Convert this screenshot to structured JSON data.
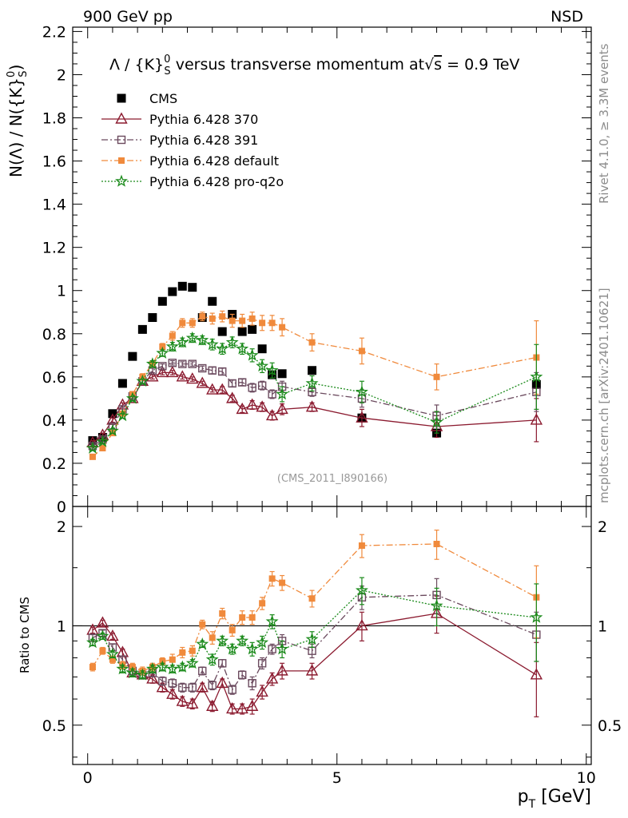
{
  "header": {
    "left": "900 GeV pp",
    "right": "NSD",
    "rivet": "Rivet 4.1.0, ≥ 3.3M events",
    "mcplots": "mcplots.cern.ch [arXiv:2401.10621]",
    "analysis": "(CMS_2011_I890166)"
  },
  "colors": {
    "cms": "#000000",
    "p370": "#8b1a2f",
    "p391": "#6b4a5e",
    "pdefault": "#f08a3c",
    "pq2o": "#1a8a1a"
  },
  "chart_data": [
    {
      "type": "scatter",
      "title": "Λ / {K}⁰S versus transverse momentum at √s = 0.9 TeV",
      "title_parts": {
        "lambda": "Λ",
        "rest": " / {K}",
        "sup": "0",
        "sub": "S",
        "mid": " versus transverse momentum at",
        "sqrt": "√",
        "s": "s",
        "end": " = 0.9 TeV"
      },
      "ylabel": "N(Λ)  /  N({K}⁰S)",
      "ylabel_parts": {
        "main": "N(Λ)  /  N({K}",
        "sup": "0",
        "sub": "S",
        "end": ")"
      },
      "xlim": [
        -0.3,
        10.1
      ],
      "ylim": [
        0,
        2.22
      ],
      "yticks": [
        "0",
        "0.2",
        "0.4",
        "0.6",
        "0.8",
        "1",
        "1.2",
        "1.4",
        "1.6",
        "1.8",
        "2",
        "2.2"
      ],
      "yticks_values": [
        0,
        0.2,
        0.4,
        0.6,
        0.8,
        1,
        1.2,
        1.4,
        1.6,
        1.8,
        2,
        2.2
      ],
      "legend_position": "top-left",
      "series": [
        {
          "name": "CMS",
          "key": "cms",
          "marker": "filled-square",
          "x": [
            0.1,
            0.3,
            0.5,
            0.7,
            0.9,
            1.1,
            1.3,
            1.5,
            1.7,
            1.9,
            2.1,
            2.3,
            2.5,
            2.7,
            2.9,
            3.1,
            3.3,
            3.5,
            3.7,
            3.9,
            4.5,
            5.5,
            7.0,
            9.0
          ],
          "y": [
            0.305,
            0.32,
            0.43,
            0.57,
            0.695,
            0.82,
            0.875,
            0.95,
            0.995,
            1.02,
            1.015,
            0.875,
            0.95,
            0.81,
            0.89,
            0.81,
            0.82,
            0.73,
            0.61,
            0.615,
            0.63,
            0.41,
            0.34,
            0.565
          ]
        },
        {
          "name": "Pythia 6.428 370",
          "key": "p370",
          "marker": "open-triangle",
          "line": "solid",
          "x": [
            0.1,
            0.3,
            0.5,
            0.7,
            0.9,
            1.1,
            1.3,
            1.5,
            1.7,
            1.9,
            2.1,
            2.3,
            2.5,
            2.7,
            2.9,
            3.1,
            3.3,
            3.5,
            3.7,
            3.9,
            4.5,
            5.5,
            7.0,
            9.0
          ],
          "y": [
            0.295,
            0.33,
            0.4,
            0.47,
            0.5,
            0.58,
            0.6,
            0.62,
            0.62,
            0.6,
            0.59,
            0.57,
            0.54,
            0.54,
            0.5,
            0.45,
            0.47,
            0.46,
            0.42,
            0.45,
            0.46,
            0.41,
            0.37,
            0.4
          ],
          "err": [
            0.01,
            0.01,
            0.01,
            0.01,
            0.01,
            0.01,
            0.01,
            0.01,
            0.01,
            0.01,
            0.01,
            0.01,
            0.01,
            0.015,
            0.015,
            0.015,
            0.02,
            0.02,
            0.02,
            0.025,
            0.02,
            0.04,
            0.05,
            0.1
          ]
        },
        {
          "name": "Pythia 6.428 391",
          "key": "p391",
          "marker": "open-square",
          "line": "dash-dot",
          "x": [
            0.1,
            0.3,
            0.5,
            0.7,
            0.9,
            1.1,
            1.3,
            1.5,
            1.7,
            1.9,
            2.1,
            2.3,
            2.5,
            2.7,
            2.9,
            3.1,
            3.3,
            3.5,
            3.7,
            3.9,
            4.5,
            5.5,
            7.0,
            9.0
          ],
          "y": [
            0.28,
            0.31,
            0.37,
            0.45,
            0.51,
            0.58,
            0.63,
            0.65,
            0.665,
            0.66,
            0.66,
            0.64,
            0.63,
            0.625,
            0.57,
            0.575,
            0.55,
            0.56,
            0.52,
            0.555,
            0.53,
            0.5,
            0.42,
            0.53
          ],
          "err": [
            0.01,
            0.01,
            0.01,
            0.01,
            0.01,
            0.01,
            0.01,
            0.01,
            0.01,
            0.01,
            0.01,
            0.01,
            0.015,
            0.015,
            0.015,
            0.015,
            0.02,
            0.02,
            0.02,
            0.025,
            0.02,
            0.04,
            0.05,
            0.09
          ]
        },
        {
          "name": "Pythia 6.428 default",
          "key": "pdefault",
          "marker": "filled-square-small",
          "line": "dash-dot",
          "x": [
            0.1,
            0.3,
            0.5,
            0.7,
            0.9,
            1.1,
            1.3,
            1.5,
            1.7,
            1.9,
            2.1,
            2.3,
            2.5,
            2.7,
            2.9,
            3.1,
            3.3,
            3.5,
            3.7,
            3.9,
            4.5,
            5.5,
            7.0,
            9.0
          ],
          "y": [
            0.23,
            0.27,
            0.34,
            0.43,
            0.52,
            0.6,
            0.66,
            0.74,
            0.79,
            0.85,
            0.85,
            0.88,
            0.87,
            0.88,
            0.86,
            0.86,
            0.87,
            0.85,
            0.85,
            0.83,
            0.76,
            0.72,
            0.6,
            0.69
          ],
          "err": [
            0.01,
            0.01,
            0.01,
            0.01,
            0.01,
            0.015,
            0.015,
            0.015,
            0.02,
            0.02,
            0.02,
            0.02,
            0.025,
            0.025,
            0.03,
            0.03,
            0.03,
            0.035,
            0.035,
            0.04,
            0.04,
            0.06,
            0.06,
            0.17
          ]
        },
        {
          "name": "Pythia 6.428 pro-q2o",
          "key": "pq2o",
          "marker": "open-star",
          "line": "dotted",
          "x": [
            0.1,
            0.3,
            0.5,
            0.7,
            0.9,
            1.1,
            1.3,
            1.5,
            1.7,
            1.9,
            2.1,
            2.3,
            2.5,
            2.7,
            2.9,
            3.1,
            3.3,
            3.5,
            3.7,
            3.9,
            4.5,
            5.5,
            7.0,
            9.0
          ],
          "y": [
            0.27,
            0.3,
            0.35,
            0.42,
            0.5,
            0.58,
            0.66,
            0.71,
            0.74,
            0.76,
            0.78,
            0.77,
            0.75,
            0.73,
            0.76,
            0.73,
            0.7,
            0.65,
            0.63,
            0.52,
            0.57,
            0.53,
            0.39,
            0.6
          ],
          "err": [
            0.01,
            0.01,
            0.01,
            0.01,
            0.01,
            0.01,
            0.015,
            0.015,
            0.02,
            0.02,
            0.02,
            0.02,
            0.025,
            0.025,
            0.025,
            0.025,
            0.03,
            0.03,
            0.035,
            0.035,
            0.035,
            0.05,
            0.05,
            0.15
          ]
        }
      ]
    },
    {
      "type": "scatter",
      "ylabel": "Ratio to CMS",
      "xlabel": "p_T [GeV]",
      "xlabel_parts": {
        "p": "p",
        "sub": "T",
        "unit": " [GeV]"
      },
      "xlim": [
        -0.3,
        10.1
      ],
      "ylim": [
        0.38,
        2.3
      ],
      "yscale": "log",
      "reference_line": 1,
      "xticks": [
        "0",
        "5",
        "10"
      ],
      "xticks_values": [
        0,
        5,
        10
      ],
      "yticks": [
        "0.5",
        "1",
        "2"
      ],
      "yticks_values": [
        0.5,
        1,
        2
      ],
      "series": [
        {
          "name": "Pythia 6.428 370",
          "key": "p370",
          "x": [
            0.1,
            0.3,
            0.5,
            0.7,
            0.9,
            1.1,
            1.3,
            1.5,
            1.7,
            1.9,
            2.1,
            2.3,
            2.5,
            2.7,
            2.9,
            3.1,
            3.3,
            3.5,
            3.7,
            3.9,
            4.5,
            5.5,
            7.0,
            9.0
          ],
          "y": [
            0.97,
            1.02,
            0.93,
            0.83,
            0.72,
            0.71,
            0.69,
            0.65,
            0.62,
            0.59,
            0.58,
            0.65,
            0.57,
            0.67,
            0.56,
            0.56,
            0.57,
            0.63,
            0.69,
            0.73,
            0.73,
            1.0,
            1.09,
            0.71
          ],
          "err": [
            0.02,
            0.02,
            0.02,
            0.02,
            0.02,
            0.02,
            0.02,
            0.02,
            0.02,
            0.02,
            0.02,
            0.02,
            0.02,
            0.02,
            0.02,
            0.02,
            0.03,
            0.03,
            0.03,
            0.04,
            0.04,
            0.1,
            0.14,
            0.18
          ]
        },
        {
          "name": "Pythia 6.428 391",
          "key": "p391",
          "x": [
            0.1,
            0.3,
            0.5,
            0.7,
            0.9,
            1.1,
            1.3,
            1.5,
            1.7,
            1.9,
            2.1,
            2.3,
            2.5,
            2.7,
            2.9,
            3.1,
            3.3,
            3.5,
            3.7,
            3.9,
            4.5,
            5.5,
            7.0,
            9.0
          ],
          "y": [
            0.92,
            0.95,
            0.86,
            0.79,
            0.73,
            0.71,
            0.72,
            0.68,
            0.67,
            0.65,
            0.65,
            0.73,
            0.66,
            0.77,
            0.64,
            0.71,
            0.67,
            0.77,
            0.85,
            0.9,
            0.84,
            1.22,
            1.24,
            0.94
          ],
          "err": [
            0.02,
            0.02,
            0.02,
            0.02,
            0.02,
            0.02,
            0.02,
            0.02,
            0.02,
            0.02,
            0.02,
            0.02,
            0.02,
            0.02,
            0.02,
            0.02,
            0.03,
            0.03,
            0.03,
            0.04,
            0.04,
            0.1,
            0.15,
            0.16
          ]
        },
        {
          "name": "Pythia 6.428 default",
          "key": "pdefault",
          "x": [
            0.1,
            0.3,
            0.5,
            0.7,
            0.9,
            1.1,
            1.3,
            1.5,
            1.7,
            1.9,
            2.1,
            2.3,
            2.5,
            2.7,
            2.9,
            3.1,
            3.3,
            3.5,
            3.7,
            3.9,
            4.5,
            5.5,
            7.0,
            9.0
          ],
          "y": [
            0.75,
            0.84,
            0.79,
            0.76,
            0.75,
            0.73,
            0.75,
            0.78,
            0.79,
            0.83,
            0.84,
            1.01,
            0.92,
            1.09,
            0.97,
            1.06,
            1.06,
            1.17,
            1.39,
            1.35,
            1.21,
            1.75,
            1.77,
            1.22
          ],
          "err": [
            0.02,
            0.02,
            0.02,
            0.02,
            0.02,
            0.02,
            0.02,
            0.02,
            0.03,
            0.03,
            0.03,
            0.03,
            0.04,
            0.04,
            0.04,
            0.05,
            0.05,
            0.05,
            0.07,
            0.07,
            0.07,
            0.14,
            0.18,
            0.3
          ]
        },
        {
          "name": "Pythia 6.428 pro-q2o",
          "key": "pq2o",
          "x": [
            0.1,
            0.3,
            0.5,
            0.7,
            0.9,
            1.1,
            1.3,
            1.5,
            1.7,
            1.9,
            2.1,
            2.3,
            2.5,
            2.7,
            2.9,
            3.1,
            3.3,
            3.5,
            3.7,
            3.9,
            4.5,
            5.5,
            7.0,
            9.0
          ],
          "y": [
            0.89,
            0.93,
            0.82,
            0.74,
            0.72,
            0.71,
            0.74,
            0.75,
            0.74,
            0.75,
            0.77,
            0.88,
            0.79,
            0.9,
            0.85,
            0.9,
            0.85,
            0.89,
            1.03,
            0.85,
            0.91,
            1.28,
            1.15,
            1.06
          ],
          "err": [
            0.02,
            0.02,
            0.02,
            0.02,
            0.02,
            0.02,
            0.02,
            0.02,
            0.02,
            0.02,
            0.02,
            0.02,
            0.03,
            0.03,
            0.03,
            0.03,
            0.04,
            0.04,
            0.05,
            0.05,
            0.05,
            0.12,
            0.15,
            0.28
          ]
        }
      ]
    }
  ]
}
